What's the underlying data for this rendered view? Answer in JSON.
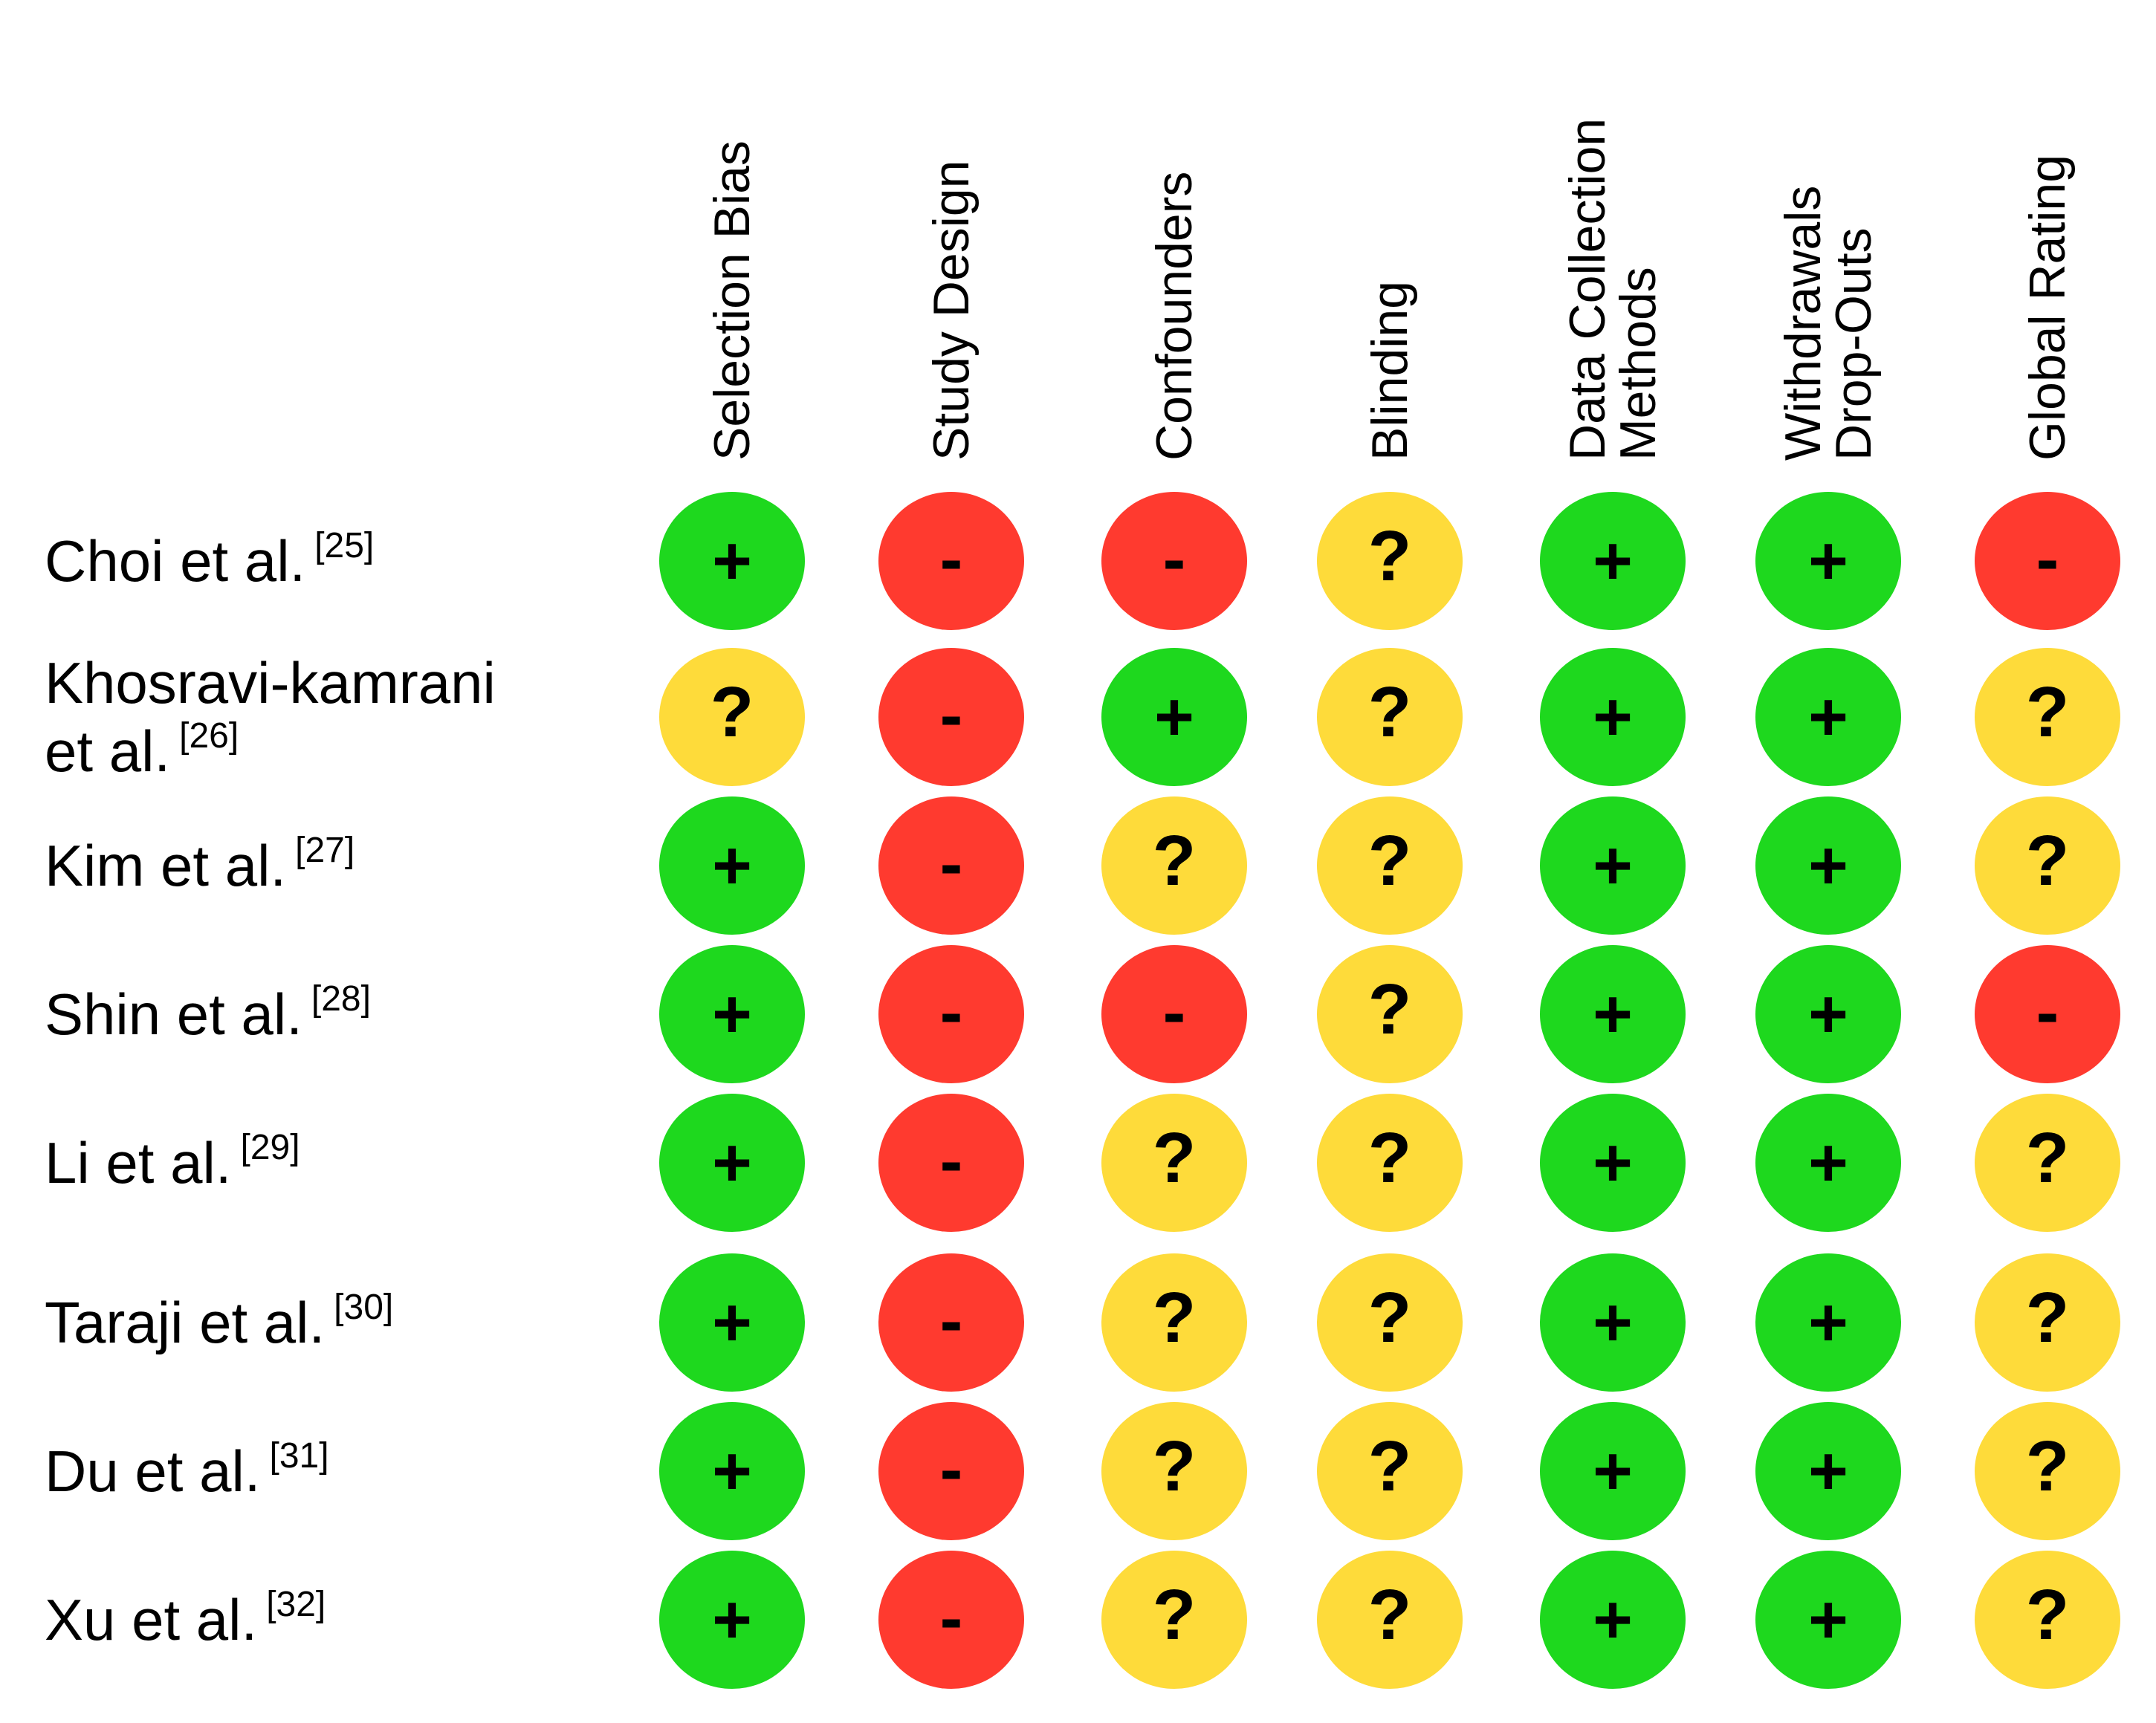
{
  "columns": [
    {
      "lines": [
        "Selection Bias"
      ]
    },
    {
      "lines": [
        "Study Design"
      ]
    },
    {
      "lines": [
        "Confounders"
      ]
    },
    {
      "lines": [
        "Blinding"
      ]
    },
    {
      "lines": [
        "Data Collection",
        "Methods"
      ]
    },
    {
      "lines": [
        "Withdrawals",
        "Drop-Outs"
      ]
    },
    {
      "lines": [
        "Global Rating"
      ]
    }
  ],
  "rows": [
    {
      "label_lines": [
        "Choi et al."
      ],
      "ref": "[25]",
      "ratings": [
        "+",
        "-",
        "-",
        "?",
        "+",
        "+",
        "-"
      ]
    },
    {
      "label_lines": [
        "Khosravi-kamrani",
        "et al."
      ],
      "ref": "[26]",
      "ratings": [
        "?",
        "-",
        "+",
        "?",
        "+",
        "+",
        "?"
      ]
    },
    {
      "label_lines": [
        "Kim et al."
      ],
      "ref": "[27]",
      "ratings": [
        "+",
        "-",
        "?",
        "?",
        "+",
        "+",
        "?"
      ]
    },
    {
      "label_lines": [
        "Shin et al."
      ],
      "ref": "[28]",
      "ratings": [
        "+",
        "-",
        "-",
        "?",
        "+",
        "+",
        "-"
      ]
    },
    {
      "label_lines": [
        "Li et al."
      ],
      "ref": "[29]",
      "ratings": [
        "+",
        "-",
        "?",
        "?",
        "+",
        "+",
        "?"
      ]
    },
    {
      "label_lines": [
        "Taraji et al."
      ],
      "ref": "[30]",
      "ratings": [
        "+",
        "-",
        "?",
        "?",
        "+",
        "+",
        "?"
      ]
    },
    {
      "label_lines": [
        "Du et al."
      ],
      "ref": "[31]",
      "ratings": [
        "+",
        "-",
        "?",
        "?",
        "+",
        "+",
        "?"
      ]
    },
    {
      "label_lines": [
        "Xu et al."
      ],
      "ref": "[32]",
      "ratings": [
        "+",
        "-",
        "?",
        "?",
        "+",
        "+",
        "?"
      ]
    }
  ],
  "legend_colors": {
    "+": "#1ed81e",
    "-": "#ff3a2f",
    "?": "#fedb3a"
  }
}
